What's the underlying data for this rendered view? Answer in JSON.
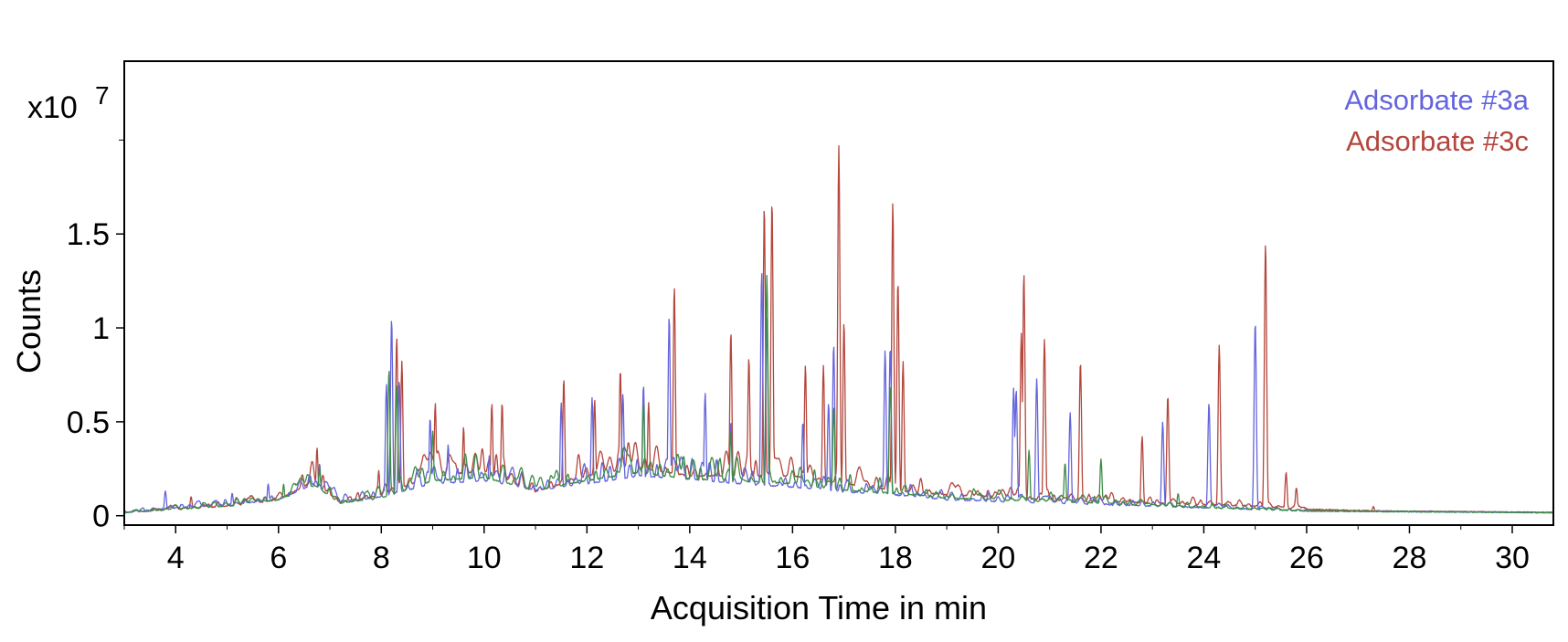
{
  "chart_data": {
    "type": "line",
    "xlabel": "Acquisition Time in min",
    "ylabel": "Counts",
    "y_multiplier_label": "x10",
    "y_multiplier_exponent": "7",
    "xlim": [
      3.0,
      30.8
    ],
    "ylim": [
      -0.05,
      2.42
    ],
    "x_ticks": [
      4,
      6,
      8,
      10,
      12,
      14,
      16,
      18,
      20,
      22,
      24,
      26,
      28,
      30
    ],
    "x_tick_labels": [
      "4",
      "6",
      "8",
      "10",
      "12",
      "14",
      "16",
      "18",
      "20",
      "22",
      "24",
      "26",
      "28",
      "30"
    ],
    "y_ticks": [
      0,
      0.5,
      1,
      1.5
    ],
    "y_tick_labels": [
      "0",
      "0.5",
      "1",
      "1.5"
    ],
    "legend_position": "top-right",
    "series": [
      {
        "name": "Adsorbate #3a",
        "color": "#6464dc",
        "baseline": [
          [
            3.0,
            0.02
          ],
          [
            4.0,
            0.05
          ],
          [
            5.0,
            0.07
          ],
          [
            6.0,
            0.1
          ],
          [
            6.7,
            0.2
          ],
          [
            7.2,
            0.08
          ],
          [
            8.0,
            0.12
          ],
          [
            9.0,
            0.2
          ],
          [
            10.0,
            0.22
          ],
          [
            11.0,
            0.16
          ],
          [
            12.0,
            0.2
          ],
          [
            13.0,
            0.25
          ],
          [
            14.0,
            0.23
          ],
          [
            15.0,
            0.2
          ],
          [
            16.0,
            0.18
          ],
          [
            17.0,
            0.15
          ],
          [
            18.0,
            0.13
          ],
          [
            19.0,
            0.1
          ],
          [
            20.0,
            0.09
          ],
          [
            21.0,
            0.08
          ],
          [
            22.0,
            0.07
          ],
          [
            23.0,
            0.06
          ],
          [
            24.0,
            0.05
          ],
          [
            25.0,
            0.04
          ],
          [
            26.0,
            0.03
          ],
          [
            30.8,
            0.02
          ]
        ],
        "peaks": [
          [
            3.8,
            0.13
          ],
          [
            5.1,
            0.12
          ],
          [
            5.8,
            0.17
          ],
          [
            6.8,
            0.28
          ],
          [
            8.1,
            0.7
          ],
          [
            8.2,
            1.05
          ],
          [
            8.35,
            0.72
          ],
          [
            8.95,
            0.52
          ],
          [
            9.3,
            0.38
          ],
          [
            10.1,
            0.32
          ],
          [
            10.4,
            0.25
          ],
          [
            11.5,
            0.6
          ],
          [
            12.1,
            0.63
          ],
          [
            12.7,
            0.65
          ],
          [
            13.1,
            0.7
          ],
          [
            13.6,
            1.06
          ],
          [
            14.3,
            0.65
          ],
          [
            14.8,
            0.5
          ],
          [
            15.4,
            1.3
          ],
          [
            15.5,
            1.05
          ],
          [
            16.2,
            0.5
          ],
          [
            16.7,
            0.6
          ],
          [
            16.8,
            0.91
          ],
          [
            17.8,
            0.88
          ],
          [
            17.9,
            0.9
          ],
          [
            20.3,
            0.68
          ],
          [
            20.35,
            0.67
          ],
          [
            20.75,
            0.73
          ],
          [
            21.4,
            0.55
          ],
          [
            23.2,
            0.5
          ],
          [
            24.1,
            0.6
          ],
          [
            25.0,
            1.03
          ]
        ]
      },
      {
        "name": "Adsorbate #3c",
        "color": "#b4463c",
        "baseline": [
          [
            3.0,
            0.02
          ],
          [
            4.0,
            0.04
          ],
          [
            5.0,
            0.06
          ],
          [
            6.0,
            0.1
          ],
          [
            6.7,
            0.22
          ],
          [
            7.2,
            0.08
          ],
          [
            8.0,
            0.13
          ],
          [
            9.0,
            0.25
          ],
          [
            10.0,
            0.28
          ],
          [
            11.0,
            0.15
          ],
          [
            12.0,
            0.25
          ],
          [
            13.0,
            0.3
          ],
          [
            14.0,
            0.25
          ],
          [
            15.0,
            0.25
          ],
          [
            16.0,
            0.25
          ],
          [
            17.0,
            0.2
          ],
          [
            18.0,
            0.16
          ],
          [
            19.0,
            0.13
          ],
          [
            20.0,
            0.12
          ],
          [
            21.0,
            0.1
          ],
          [
            22.0,
            0.09
          ],
          [
            23.0,
            0.08
          ],
          [
            24.0,
            0.07
          ],
          [
            25.0,
            0.06
          ],
          [
            26.0,
            0.04
          ],
          [
            27.3,
            0.03
          ],
          [
            30.8,
            0.02
          ]
        ],
        "peaks": [
          [
            4.3,
            0.1
          ],
          [
            6.75,
            0.36
          ],
          [
            7.95,
            0.24
          ],
          [
            8.3,
            0.95
          ],
          [
            8.4,
            0.82
          ],
          [
            9.05,
            0.6
          ],
          [
            9.6,
            0.47
          ],
          [
            10.15,
            0.6
          ],
          [
            10.35,
            0.6
          ],
          [
            11.55,
            0.73
          ],
          [
            12.15,
            0.62
          ],
          [
            12.65,
            0.78
          ],
          [
            13.2,
            0.6
          ],
          [
            13.7,
            1.22
          ],
          [
            14.8,
            0.98
          ],
          [
            15.15,
            0.84
          ],
          [
            15.45,
            1.65
          ],
          [
            15.6,
            1.68
          ],
          [
            16.25,
            0.8
          ],
          [
            16.6,
            0.8
          ],
          [
            16.9,
            1.97
          ],
          [
            17.0,
            1.03
          ],
          [
            17.95,
            1.67
          ],
          [
            18.05,
            1.25
          ],
          [
            18.15,
            0.82
          ],
          [
            20.45,
            0.97
          ],
          [
            20.5,
            1.29
          ],
          [
            20.9,
            0.94
          ],
          [
            21.6,
            0.82
          ],
          [
            22.8,
            0.42
          ],
          [
            23.3,
            0.64
          ],
          [
            24.3,
            0.91
          ],
          [
            25.2,
            1.45
          ],
          [
            25.6,
            0.23
          ],
          [
            25.8,
            0.15
          ],
          [
            27.3,
            0.05
          ]
        ]
      },
      {
        "name": "",
        "color": "#3c8c46",
        "baseline": [
          [
            3.0,
            0.02
          ],
          [
            4.0,
            0.04
          ],
          [
            5.0,
            0.06
          ],
          [
            6.0,
            0.1
          ],
          [
            6.7,
            0.19
          ],
          [
            7.2,
            0.08
          ],
          [
            8.0,
            0.11
          ],
          [
            9.0,
            0.22
          ],
          [
            10.0,
            0.24
          ],
          [
            11.0,
            0.16
          ],
          [
            12.0,
            0.22
          ],
          [
            13.0,
            0.27
          ],
          [
            14.0,
            0.23
          ],
          [
            15.0,
            0.22
          ],
          [
            16.0,
            0.2
          ],
          [
            17.0,
            0.16
          ],
          [
            18.0,
            0.14
          ],
          [
            19.0,
            0.11
          ],
          [
            20.0,
            0.1
          ],
          [
            21.0,
            0.09
          ],
          [
            22.0,
            0.08
          ],
          [
            23.0,
            0.06
          ],
          [
            24.0,
            0.05
          ],
          [
            25.0,
            0.04
          ],
          [
            26.0,
            0.03
          ],
          [
            30.8,
            0.02
          ]
        ],
        "peaks": [
          [
            6.1,
            0.17
          ],
          [
            6.8,
            0.26
          ],
          [
            8.15,
            0.78
          ],
          [
            8.3,
            0.7
          ],
          [
            9.0,
            0.45
          ],
          [
            13.1,
            0.6
          ],
          [
            14.8,
            0.45
          ],
          [
            15.5,
            1.28
          ],
          [
            16.8,
            0.58
          ],
          [
            17.9,
            0.7
          ],
          [
            20.6,
            0.35
          ],
          [
            21.3,
            0.28
          ],
          [
            22.0,
            0.3
          ],
          [
            23.5,
            0.12
          ]
        ]
      }
    ]
  }
}
